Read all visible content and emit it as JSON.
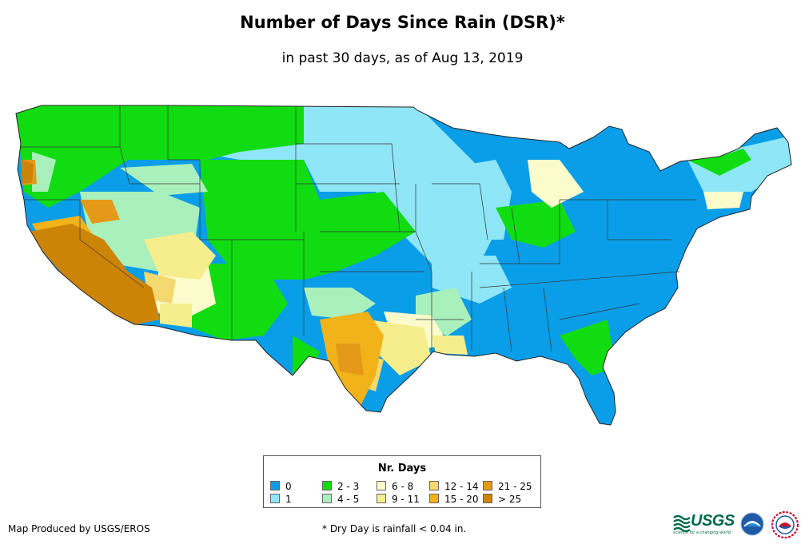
{
  "title": "Number of Days Since Rain (DSR)*",
  "subtitle": "in past 30 days, as of Aug 13, 2019",
  "legend": {
    "title": "Nr. Days",
    "items": [
      {
        "label": "0",
        "color": "#0a9ee8"
      },
      {
        "label": "1",
        "color": "#8ee6f6"
      },
      {
        "label": "2 - 3",
        "color": "#11dc11"
      },
      {
        "label": "4 - 5",
        "color": "#aaf0bc"
      },
      {
        "label": "6 - 8",
        "color": "#fbfbcc"
      },
      {
        "label": "9 - 11",
        "color": "#f6ee8c"
      },
      {
        "label": "12 - 14",
        "color": "#f4d870"
      },
      {
        "label": "15 - 20",
        "color": "#f2b21a"
      },
      {
        "label": "21 - 25",
        "color": "#e49a18"
      },
      {
        "label": "> 25",
        "color": "#cc8406"
      }
    ]
  },
  "credit": "Map Produced by USGS/EROS",
  "footnote": "* Dry Day is rainfall < 0.04 in.",
  "logos": {
    "usgs": "USGS",
    "usgs_tagline": "science for a changing world",
    "noaa": "NOAA",
    "nws": "National Weather Service"
  }
}
